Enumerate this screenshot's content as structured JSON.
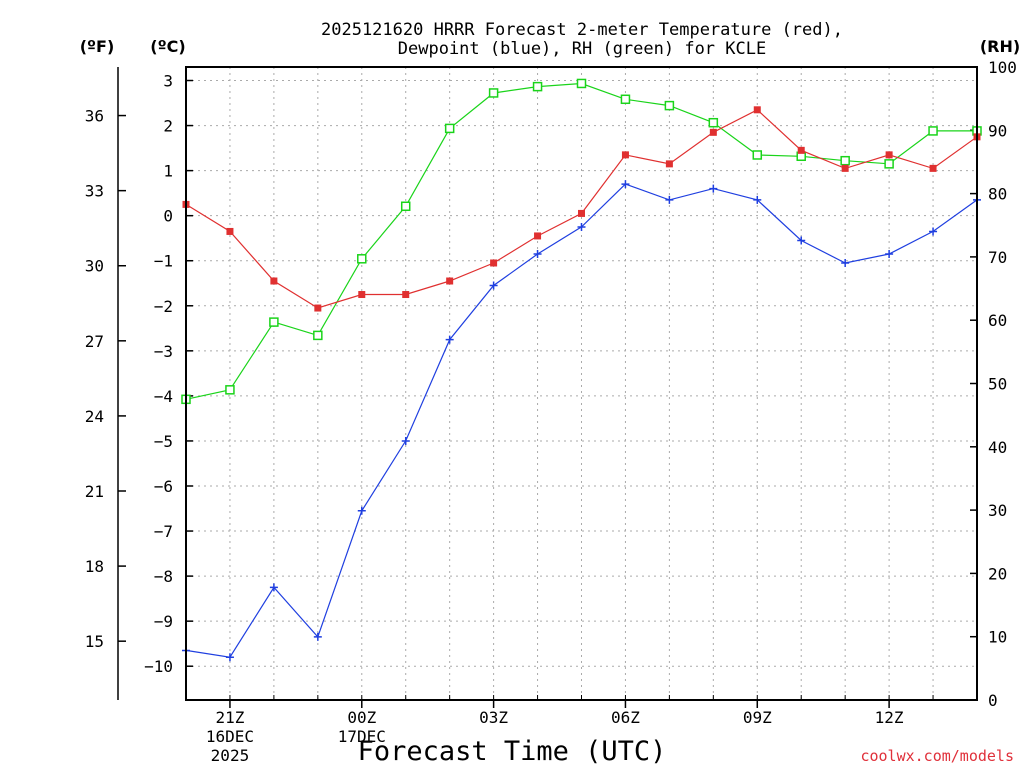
{
  "chart_data": {
    "type": "line",
    "title_line1": "2025121620 HRRR Forecast 2-meter Temperature (red),",
    "title_line2": "Dewpoint (blue), RH (green) for KCLE",
    "xlabel": "Forecast Time (UTC)",
    "unit_labels": {
      "fahrenheit": "(ºF)",
      "celsius": "(ºC)",
      "rh": "(RH)"
    },
    "credit": "coolwx.com/models",
    "x_hours": [
      20,
      21,
      22,
      23,
      24,
      25,
      26,
      27,
      28,
      29,
      30,
      31,
      32,
      33,
      34,
      35,
      36,
      37,
      38
    ],
    "xlim": [
      20,
      38
    ],
    "x_ticks": [
      {
        "hour": 21,
        "label": "21Z",
        "date": "16DEC",
        "year": "2025"
      },
      {
        "hour": 24,
        "label": "00Z",
        "date": "17DEC",
        "year": ""
      },
      {
        "hour": 27,
        "label": "03Z",
        "date": "",
        "year": ""
      },
      {
        "hour": 30,
        "label": "06Z",
        "date": "",
        "year": ""
      },
      {
        "hour": 33,
        "label": "09Z",
        "date": "",
        "year": ""
      },
      {
        "hour": 36,
        "label": "12Z",
        "date": "",
        "year": ""
      }
    ],
    "celsius_axis": {
      "ylim": [
        -10.75,
        3.3
      ],
      "ticks": [
        3,
        2,
        1,
        0,
        -1,
        -2,
        -3,
        -4,
        -5,
        -6,
        -7,
        -8,
        -9,
        -10
      ],
      "tick_labels": [
        "3",
        "2",
        "1",
        "0",
        "−1",
        "−2",
        "−3",
        "−4",
        "−5",
        "−6",
        "−7",
        "−8",
        "−9",
        "−10"
      ]
    },
    "fahrenheit_axis": {
      "ticks": [
        36,
        33,
        30,
        27,
        24,
        21,
        18,
        15
      ],
      "tick_labels": [
        "36",
        "33",
        "30",
        "27",
        "24",
        "21",
        "18",
        "15"
      ]
    },
    "rh_axis": {
      "ylim": [
        0,
        100
      ],
      "ticks": [
        100,
        90,
        80,
        70,
        60,
        50,
        40,
        30,
        20,
        10,
        0
      ],
      "tick_labels": [
        "100",
        "90",
        "80",
        "70",
        "60",
        "50",
        "40",
        "30",
        "20",
        "10",
        "0"
      ]
    },
    "series": [
      {
        "name": "Temperature",
        "unit": "C",
        "color": "#e03030",
        "marker": "filled-square",
        "values": [
          0.25,
          -0.35,
          -1.45,
          -2.05,
          -1.75,
          -1.75,
          -1.45,
          -1.05,
          -0.45,
          0.05,
          1.35,
          1.15,
          1.85,
          2.35,
          1.45,
          1.05,
          1.35,
          1.05,
          1.75
        ]
      },
      {
        "name": "Dewpoint",
        "unit": "C",
        "color": "#1f3fe0",
        "marker": "plus",
        "values": [
          -9.65,
          -9.8,
          -8.25,
          -9.35,
          -6.55,
          -5.0,
          -2.75,
          -1.55,
          -0.85,
          -0.25,
          0.7,
          0.35,
          0.6,
          0.35,
          -0.55,
          -1.05,
          -0.85,
          -0.35,
          0.35
        ]
      },
      {
        "name": "RH",
        "unit": "%",
        "color": "#1ad41a",
        "marker": "open-square",
        "values": [
          47.5,
          49,
          59.7,
          57.6,
          69.7,
          78,
          90.3,
          95.9,
          96.9,
          97.4,
          94.9,
          93.9,
          91.2,
          86.1,
          85.9,
          85.2,
          84.7,
          89.9,
          89.9
        ]
      }
    ]
  }
}
